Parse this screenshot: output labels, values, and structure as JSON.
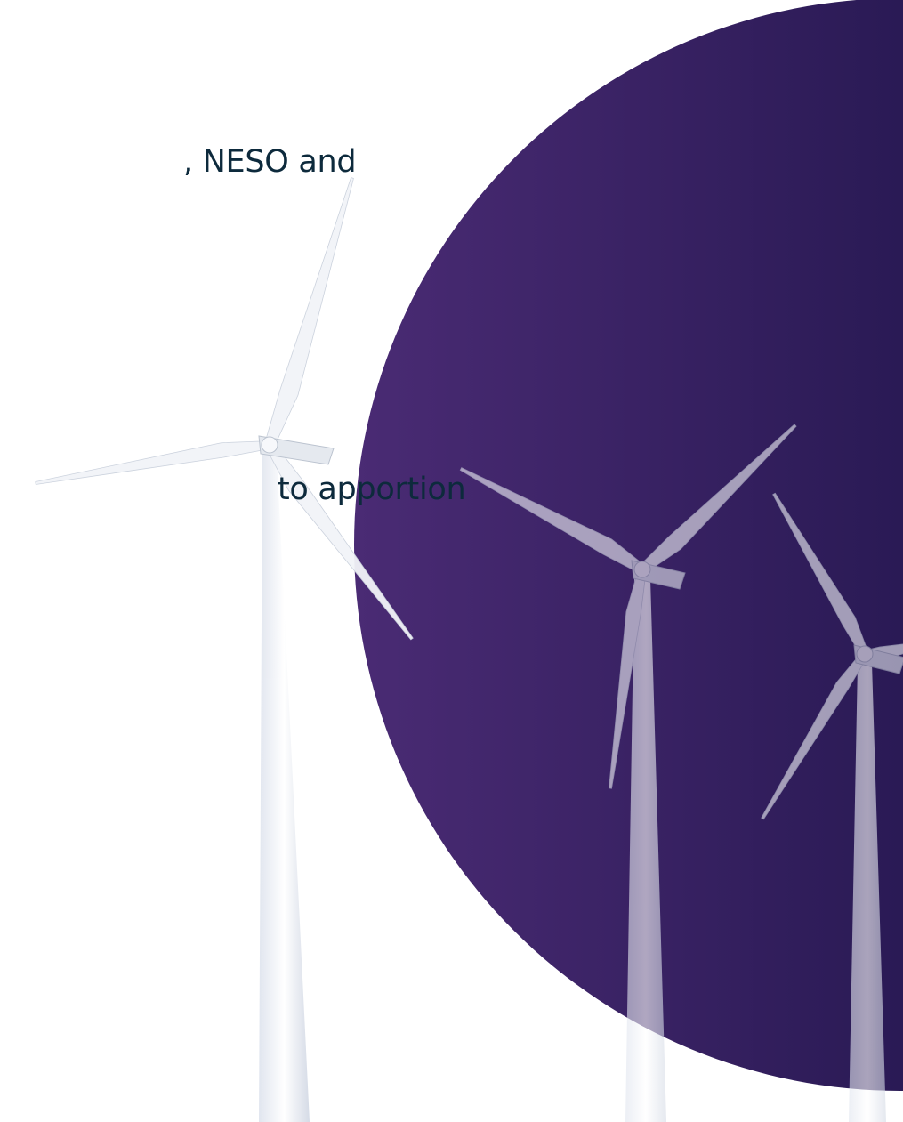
{
  "slide": {
    "text_lines": [
      ", NESO and",
      "to apportion"
    ]
  }
}
